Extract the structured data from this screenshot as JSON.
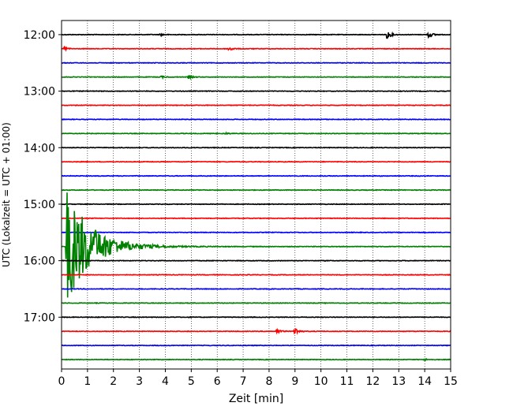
{
  "chart_data": {
    "type": "line",
    "title": "",
    "xlabel": "Zeit  [min]",
    "ylabel": "UTC (Lokalzeit = UTC + 01:00)",
    "xlim": [
      0,
      15
    ],
    "ylim": [
      "11:45",
      "17:55"
    ],
    "x_ticks": [
      "0",
      "1",
      "2",
      "3",
      "4",
      "5",
      "6",
      "7",
      "8",
      "9",
      "10",
      "11",
      "12",
      "13",
      "14",
      "15"
    ],
    "y_ticks": [
      "12:00",
      "13:00",
      "14:00",
      "15:00",
      "16:00",
      "17:00"
    ],
    "grid": "vertical dotted at each minute",
    "trace_interval_min": 15,
    "trace_colors_cycle": [
      "#000000",
      "#ff0000",
      "#0000ff",
      "#008000"
    ],
    "series": [
      {
        "start": "12:00",
        "color": "#000000",
        "events": [
          {
            "t": 3.8,
            "amp": 0.25
          },
          {
            "t": 12.55,
            "amp": 0.9
          },
          {
            "t": 14.15,
            "amp": 0.7
          }
        ]
      },
      {
        "start": "12:15",
        "color": "#ff0000",
        "events": [
          {
            "t": 6.45,
            "amp": 0.5
          },
          {
            "t": 0.1,
            "amp": 0.4
          }
        ]
      },
      {
        "start": "12:30",
        "color": "#0000ff",
        "events": []
      },
      {
        "start": "12:45",
        "color": "#008000",
        "events": [
          {
            "t": 3.8,
            "amp": 0.3
          },
          {
            "t": 4.9,
            "amp": 0.35
          }
        ]
      },
      {
        "start": "13:00",
        "color": "#000000",
        "events": []
      },
      {
        "start": "13:15",
        "color": "#ff0000",
        "events": []
      },
      {
        "start": "13:30",
        "color": "#0000ff",
        "events": []
      },
      {
        "start": "13:45",
        "color": "#008000",
        "events": [
          {
            "t": 6.3,
            "amp": 0.2
          }
        ]
      },
      {
        "start": "14:00",
        "color": "#000000",
        "events": []
      },
      {
        "start": "14:15",
        "color": "#ff0000",
        "events": []
      },
      {
        "start": "14:30",
        "color": "#0000ff",
        "events": []
      },
      {
        "start": "14:45",
        "color": "#008000",
        "events": []
      },
      {
        "start": "15:00",
        "color": "#000000",
        "events": []
      },
      {
        "start": "15:15",
        "color": "#ff0000",
        "events": []
      },
      {
        "start": "15:30",
        "color": "#0000ff",
        "events": []
      },
      {
        "start": "15:45",
        "color": "#008000",
        "events": [
          {
            "t": 0.2,
            "amp": 12,
            "decay_min": 0.9
          }
        ]
      },
      {
        "start": "16:00",
        "color": "#000000",
        "events": []
      },
      {
        "start": "16:15",
        "color": "#ff0000",
        "events": []
      },
      {
        "start": "16:30",
        "color": "#0000ff",
        "events": []
      },
      {
        "start": "16:45",
        "color": "#008000",
        "events": []
      },
      {
        "start": "17:00",
        "color": "#000000",
        "events": []
      },
      {
        "start": "17:15",
        "color": "#ff0000",
        "events": [
          {
            "t": 8.3,
            "amp": 0.5
          },
          {
            "t": 9.0,
            "amp": 0.9
          }
        ]
      },
      {
        "start": "17:30",
        "color": "#0000ff",
        "events": []
      },
      {
        "start": "17:45",
        "color": "#008000",
        "events": [
          {
            "t": 14.0,
            "amp": 0.2
          }
        ]
      }
    ]
  }
}
